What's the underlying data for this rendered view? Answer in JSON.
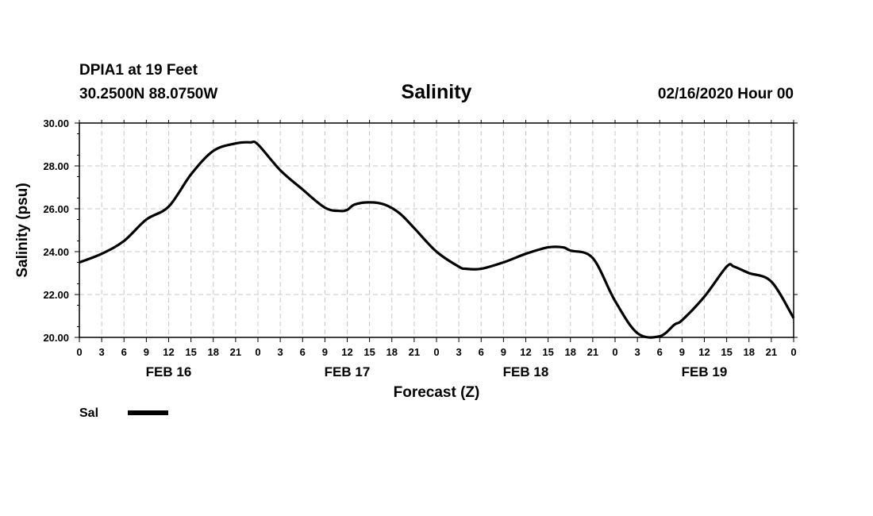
{
  "header": {
    "station": "DPIA1 at 19 Feet",
    "coords": "30.2500N 88.0750W",
    "title": "Salinity",
    "forecast_time": "02/16/2020 Hour 00"
  },
  "legend": {
    "label": "Sal"
  },
  "chart_data": {
    "type": "line",
    "title": "Salinity",
    "xlabel": "Forecast (Z)",
    "ylabel": "Salinity (psu)",
    "ylim": [
      20,
      30
    ],
    "xlim_hours": [
      0,
      96
    ],
    "y_ticks": [
      "20.00",
      "22.00",
      "24.00",
      "26.00",
      "28.00",
      "30.00"
    ],
    "x_tick_labels": [
      "0",
      "3",
      "6",
      "9",
      "12",
      "15",
      "18",
      "21",
      "0",
      "3",
      "6",
      "9",
      "12",
      "15",
      "18",
      "21",
      "0",
      "3",
      "6",
      "9",
      "12",
      "15",
      "18",
      "21",
      "0",
      "3",
      "6",
      "9",
      "12",
      "15",
      "18",
      "21",
      "0"
    ],
    "day_labels": [
      {
        "label": "FEB 16",
        "hour": 12
      },
      {
        "label": "FEB 17",
        "hour": 36
      },
      {
        "label": "FEB 18",
        "hour": 60
      },
      {
        "label": "FEB 19",
        "hour": 84
      }
    ],
    "grid": true,
    "legend_position": "bottom-left",
    "series": [
      {
        "name": "Sal",
        "color": "#000000",
        "x": [
          0,
          3,
          6,
          9,
          12,
          15,
          18,
          21,
          23,
          24,
          27,
          30,
          33,
          35,
          36,
          37,
          39,
          41,
          43,
          45,
          48,
          51,
          52,
          54,
          57,
          60,
          63,
          65,
          66,
          69,
          72,
          75,
          78,
          80,
          81,
          84,
          87,
          88,
          90,
          93,
          96
        ],
        "values": [
          23.5,
          23.9,
          24.5,
          25.5,
          26.1,
          27.6,
          28.7,
          29.05,
          29.1,
          29.0,
          27.8,
          26.9,
          26.05,
          25.9,
          25.95,
          26.2,
          26.3,
          26.2,
          25.8,
          25.1,
          24.0,
          23.3,
          23.2,
          23.2,
          23.5,
          23.9,
          24.2,
          24.2,
          24.05,
          23.7,
          21.7,
          20.2,
          20.05,
          20.6,
          20.8,
          21.9,
          23.3,
          23.3,
          23.0,
          22.6,
          20.9
        ]
      }
    ]
  }
}
